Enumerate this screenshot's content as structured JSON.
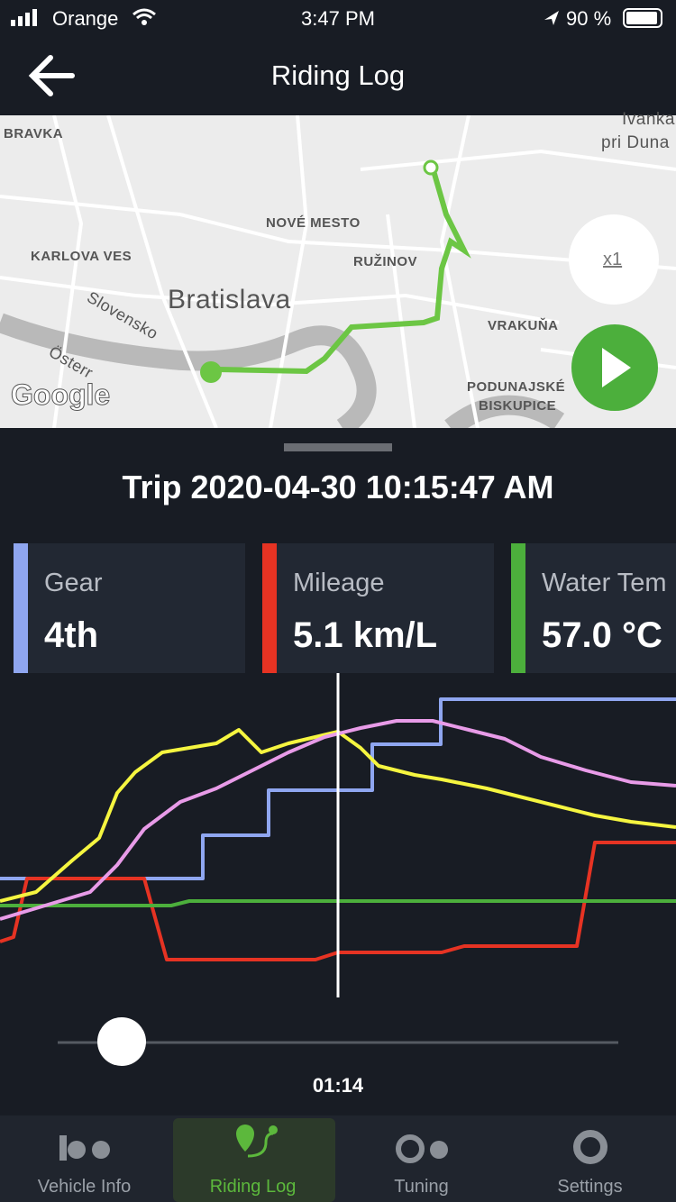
{
  "status_bar": {
    "carrier": "Orange",
    "time": "3:47 PM",
    "battery": "90 %"
  },
  "header": {
    "title": "Riding Log"
  },
  "map": {
    "labels": [
      "BRAVKA",
      "Ivanka",
      "pri Duna",
      "NOVÉ MESTO",
      "KARLOVA VES",
      "RUŽINOV",
      "Bratislava",
      "Slovensko",
      "Österr",
      "VRAKUŇA",
      "PODUNAJSKÉ",
      "BISKUPICE"
    ],
    "attribution": "Google",
    "speed": "x1"
  },
  "trip": {
    "title": "Trip 2020-04-30 10:15:47 AM"
  },
  "cards": [
    {
      "label": "Gear",
      "value": "4th"
    },
    {
      "label": "Mileage",
      "value": "5.1 km/L"
    },
    {
      "label": "Water Tem",
      "value": "57.0 °C"
    }
  ],
  "playback": {
    "time": "01:14"
  },
  "tabs": [
    "Vehicle Info",
    "Riding Log",
    "Tuning",
    "Settings"
  ]
}
